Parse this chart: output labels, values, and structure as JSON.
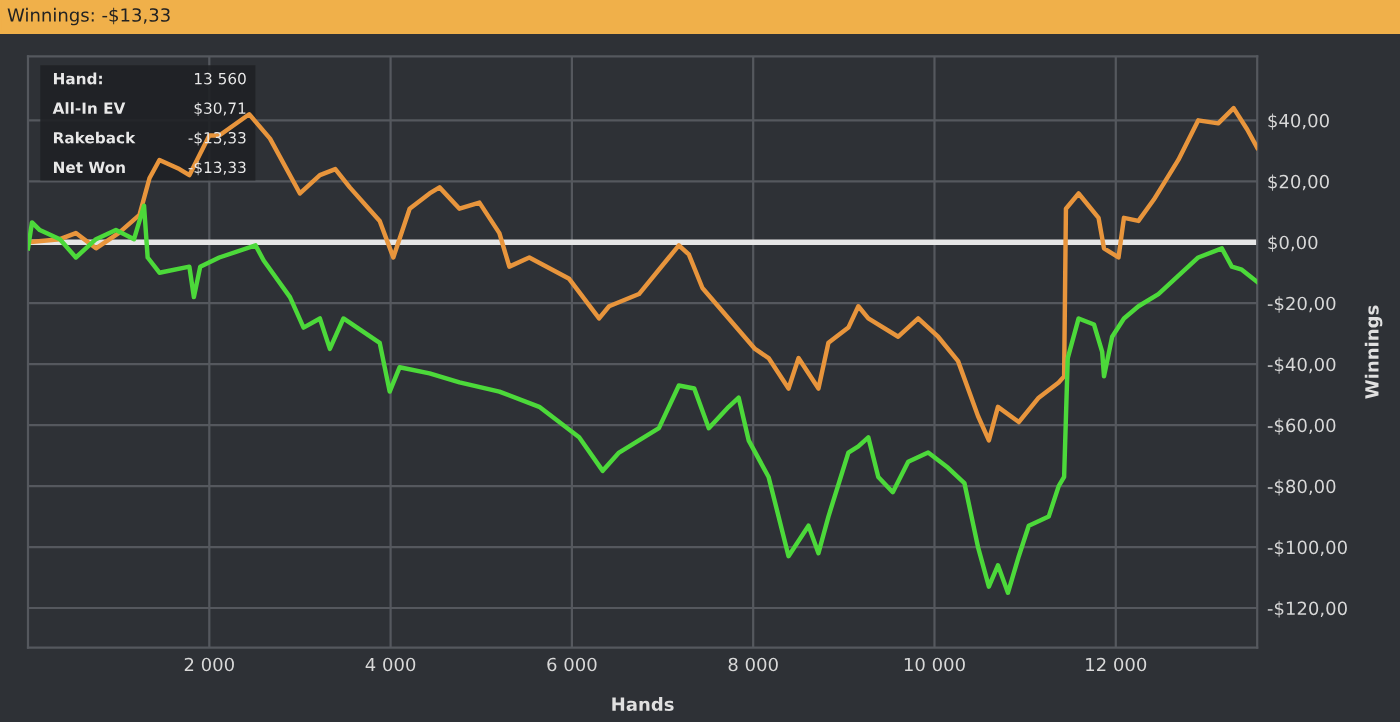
{
  "chart_data": {
    "type": "line",
    "title": "Winnings: -$13,33",
    "xlabel": "Hands",
    "ylabel": "Winnings",
    "xlim": [
      0,
      13560
    ],
    "ylim": [
      -133,
      61
    ],
    "xticks": [
      {
        "value": 2000,
        "label": "2 000"
      },
      {
        "value": 4000,
        "label": "4 000"
      },
      {
        "value": 6000,
        "label": "6 000"
      },
      {
        "value": 8000,
        "label": "8 000"
      },
      {
        "value": 10000,
        "label": "10 000"
      },
      {
        "value": 12000,
        "label": "12 000"
      }
    ],
    "yticks": [
      {
        "value": -120,
        "label": "-$120,00"
      },
      {
        "value": -100,
        "label": "-$100,00"
      },
      {
        "value": -80,
        "label": "-$80,00"
      },
      {
        "value": -60,
        "label": "-$60,00"
      },
      {
        "value": -40,
        "label": "-$40,00"
      },
      {
        "value": -20,
        "label": "-$20,00"
      },
      {
        "value": 0,
        "label": "$0,00"
      },
      {
        "value": 20,
        "label": "$20,00"
      },
      {
        "value": 40,
        "label": "$40,00"
      }
    ],
    "grid": true,
    "line_style": "solid",
    "marker": "none",
    "ref_lines": [
      {
        "axis": "y",
        "value": 0,
        "color": "#e6e6e6"
      }
    ],
    "annotations": [
      "Hand:",
      "13 560",
      "All-In EV",
      "$30,71",
      "Rakeback",
      "-$13,33",
      "Net Won",
      "-$13,33"
    ],
    "series": [
      {
        "color": "#e8953c",
        "x": [
          0,
          352,
          528,
          750,
          1000,
          1230,
          1340,
          1450,
          1670,
          1780,
          2000,
          2110,
          2440,
          2670,
          3000,
          3220,
          3390,
          3550,
          3880,
          4030,
          4210,
          4430,
          4540,
          4760,
          4980,
          5200,
          5310,
          5530,
          5970,
          6300,
          6410,
          6740,
          7070,
          7180,
          7290,
          7440,
          7730,
          8020,
          8170,
          8390,
          8500,
          8720,
          8830,
          9050,
          9160,
          9270,
          9600,
          9820,
          10040,
          10260,
          10480,
          10600,
          10700,
          10930,
          11150,
          11370,
          11430,
          11450,
          11590,
          11810,
          11870,
          12030,
          12090,
          12250,
          12420,
          12690,
          12910,
          13130,
          13300,
          13450,
          13560
        ],
        "values": [
          0,
          1,
          3,
          -2,
          3,
          9,
          21,
          27,
          24,
          22,
          35,
          35,
          42,
          34,
          16,
          22,
          24,
          18,
          7,
          -5,
          11,
          16,
          18,
          11,
          13,
          3,
          -8,
          -5,
          -12,
          -25,
          -21,
          -17,
          -5,
          -1,
          -4,
          -15,
          -25,
          -35,
          -38,
          -48,
          -38,
          -48,
          -33,
          -28,
          -21,
          -25,
          -31,
          -25,
          -31,
          -39,
          -57,
          -65,
          -54,
          -59,
          -51,
          -46,
          -44,
          11,
          16,
          8,
          -2,
          -5,
          8,
          7,
          14,
          27,
          40,
          39,
          44,
          37,
          31
        ]
      },
      {
        "color": "#4cd93a",
        "x": [
          0,
          44,
          130,
          352,
          528,
          750,
          970,
          1170,
          1280,
          1320,
          1450,
          1780,
          1830,
          1900,
          2110,
          2510,
          2600,
          2890,
          3040,
          3220,
          3330,
          3480,
          3880,
          3990,
          4100,
          4430,
          4760,
          5200,
          5640,
          6080,
          6340,
          6520,
          6960,
          7180,
          7350,
          7510,
          7730,
          7840,
          7950,
          8170,
          8390,
          8610,
          8720,
          8830,
          9050,
          9160,
          9270,
          9380,
          9540,
          9710,
          9930,
          10150,
          10330,
          10480,
          10600,
          10700,
          10810,
          10930,
          11040,
          11260,
          11370,
          11430,
          11470,
          11590,
          11760,
          11850,
          11870,
          11960,
          12090,
          12250,
          12470,
          12910,
          13170,
          13280,
          13390,
          13560
        ],
        "values": [
          -2,
          6.5,
          4,
          1,
          -5,
          1,
          4,
          1,
          12,
          -5,
          -10,
          -8,
          -18,
          -8,
          -5,
          -1,
          -6,
          -18,
          -28,
          -25,
          -35,
          -25,
          -33,
          -49,
          -41,
          -43,
          -46,
          -49,
          -54,
          -64,
          -75,
          -69,
          -61,
          -47,
          -48,
          -61,
          -54,
          -51,
          -65,
          -77,
          -103,
          -93,
          -102,
          -90,
          -69,
          -67,
          -64,
          -77,
          -82,
          -72,
          -69,
          -74,
          -79,
          -100,
          -113,
          -106,
          -115,
          -103,
          -93,
          -90,
          -80,
          -77,
          -38,
          -25,
          -27,
          -36,
          -44,
          -31,
          -25,
          -21,
          -17,
          -5,
          -2,
          -8,
          -9,
          -13
        ]
      }
    ]
  }
}
